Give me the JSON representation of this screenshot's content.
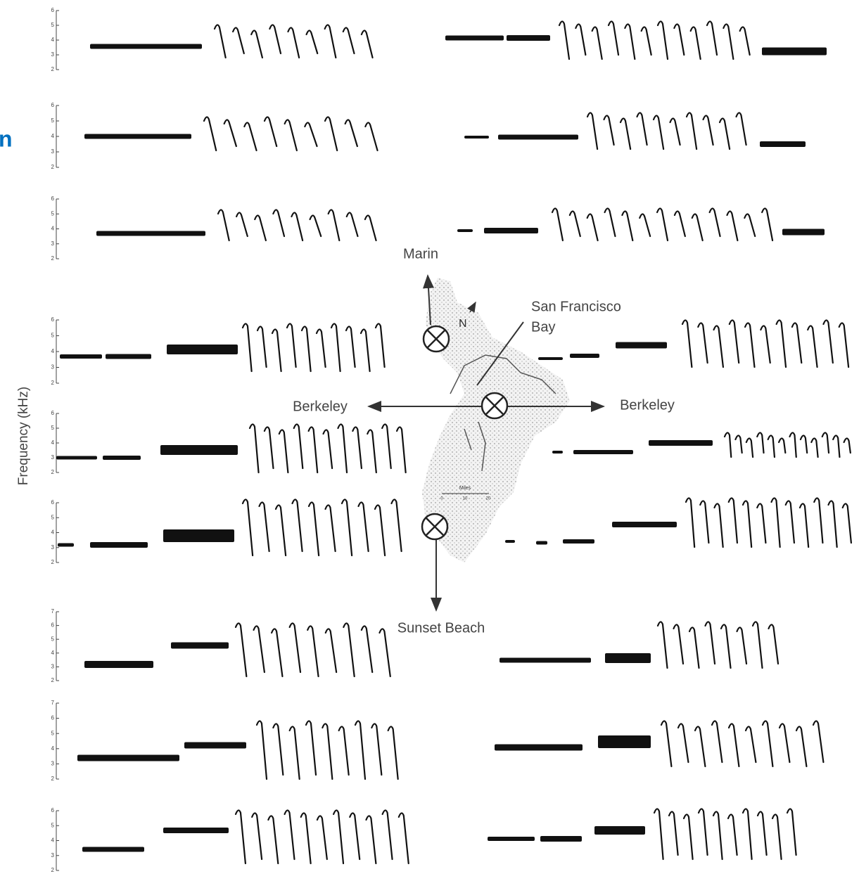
{
  "fragment": "n",
  "y_axis": {
    "label": "Frequency (kHz)"
  },
  "panels": [
    {
      "ticks": [
        2,
        3,
        4,
        5,
        6
      ]
    },
    {
      "ticks": [
        2,
        3,
        4,
        5,
        6
      ]
    },
    {
      "ticks": [
        2,
        3,
        4,
        5,
        6
      ]
    },
    {
      "ticks": [
        2,
        3,
        4,
        5,
        6
      ]
    },
    {
      "ticks": [
        2,
        3,
        4,
        5,
        6
      ]
    },
    {
      "ticks": [
        2,
        3,
        4,
        5,
        6
      ]
    },
    {
      "ticks": [
        2,
        3,
        4,
        5,
        6,
        7
      ]
    },
    {
      "ticks": [
        2,
        3,
        4,
        5,
        6,
        7
      ]
    },
    {
      "ticks": [
        2,
        3,
        4,
        5,
        6
      ]
    }
  ],
  "map": {
    "north": "N",
    "marin": "Marin",
    "bay": [
      "San Francisco",
      "Bay"
    ],
    "berkeley_west": "Berkeley",
    "berkeley_east": "Berkeley",
    "sunset": "Sunset Beach",
    "scale": {
      "title": "Miles",
      "ticks": [
        "0",
        "10",
        "20"
      ]
    }
  }
}
